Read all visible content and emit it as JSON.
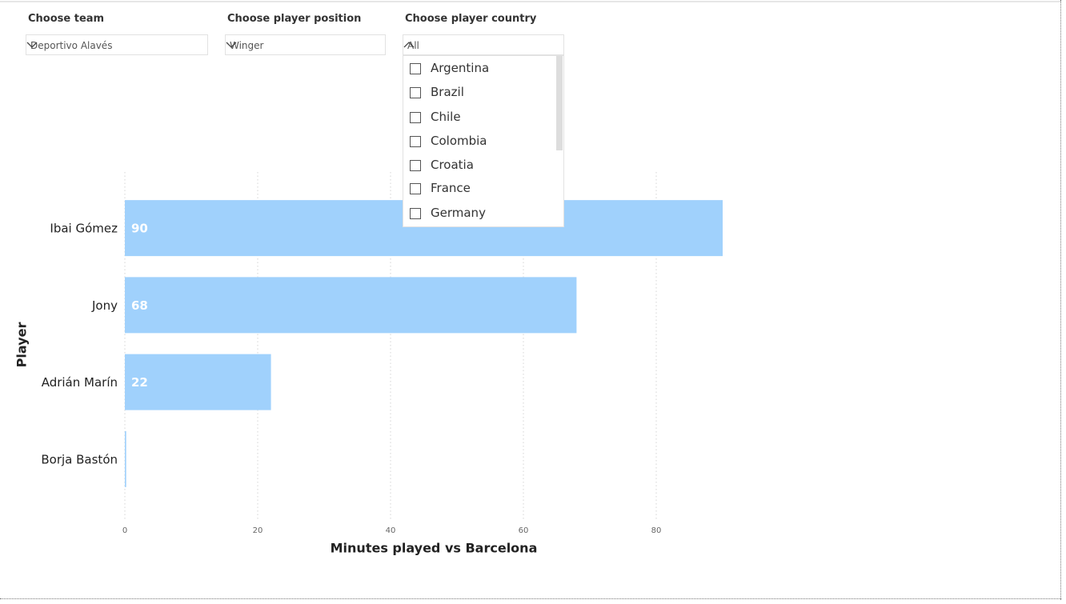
{
  "slicers": [
    {
      "title": "Choose team",
      "value": "Deportivo Alavés"
    },
    {
      "title": "Choose player position",
      "value": "Winger"
    },
    {
      "title": "Choose player country",
      "value": "All",
      "options": [
        "Argentina",
        "Brazil",
        "Chile",
        "Colombia",
        "Croatia",
        "France",
        "Germany"
      ]
    }
  ],
  "chart_data": {
    "type": "bar",
    "orientation": "horizontal",
    "categories": [
      "Ibai Gómez",
      "Jony",
      "Adrián Marín",
      "Borja Bastón"
    ],
    "values": [
      90,
      68,
      22,
      0.2
    ],
    "value_labels": [
      "90",
      "68",
      "22",
      null
    ],
    "color": "#a0d1fc",
    "xlim": [
      0,
      100
    ],
    "xticks": [
      0,
      20,
      40,
      60,
      80
    ],
    "x_label": "Minutes played vs Barcelona",
    "y_label": "Player",
    "grid": true
  }
}
